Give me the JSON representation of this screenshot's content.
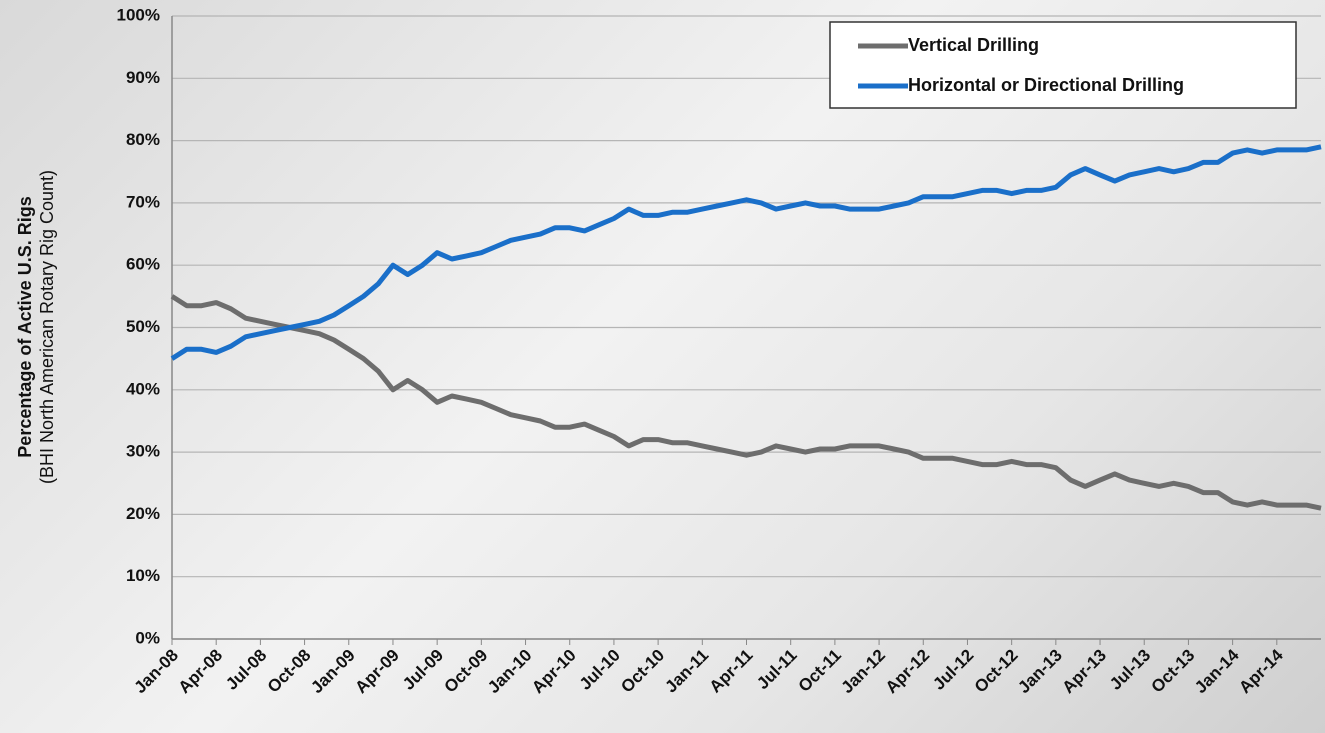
{
  "chart_data": {
    "type": "line",
    "ylabel": "Percentage of Active U.S. Rigs",
    "ylabel_sub": "(BHI North American Rotary Rig Count)",
    "categories": [
      "Jan-08",
      null,
      null,
      "Apr-08",
      null,
      null,
      "Jul-08",
      null,
      null,
      "Oct-08",
      null,
      null,
      "Jan-09",
      null,
      null,
      "Apr-09",
      null,
      null,
      "Jul-09",
      null,
      null,
      "Oct-09",
      null,
      null,
      "Jan-10",
      null,
      null,
      "Apr-10",
      null,
      null,
      "Jul-10",
      null,
      null,
      "Oct-10",
      null,
      null,
      "Jan-11",
      null,
      null,
      "Apr-11",
      null,
      null,
      "Jul-11",
      null,
      null,
      "Oct-11",
      null,
      null,
      "Jan-12",
      null,
      null,
      "Apr-12",
      null,
      null,
      "Jul-12",
      null,
      null,
      "Oct-12",
      null,
      null,
      "Jan-13",
      null,
      null,
      "Apr-13",
      null,
      null,
      "Jul-13",
      null,
      null,
      "Oct-13",
      null,
      null,
      "Jan-14",
      null,
      null,
      "Apr-14",
      null,
      null,
      null
    ],
    "series": [
      {
        "name": "Vertical Drilling",
        "color": "#6d6d6d",
        "values": [
          55,
          53.5,
          53.5,
          54,
          53,
          51.5,
          51,
          50.5,
          50,
          49.5,
          49,
          48,
          46.5,
          45,
          43,
          40,
          41.5,
          40,
          38,
          39,
          38.5,
          38,
          37,
          36,
          35.5,
          35,
          34,
          34,
          34.5,
          33.5,
          32.5,
          31,
          32,
          32,
          31.5,
          31.5,
          31,
          30.5,
          30,
          29.5,
          30,
          31,
          30.5,
          30,
          30.5,
          30.5,
          31,
          31,
          31,
          30.5,
          30,
          29,
          29,
          29,
          28.5,
          28,
          28,
          28.5,
          28,
          28,
          27.5,
          25.5,
          24.5,
          25.5,
          26.5,
          25.5,
          25,
          24.5,
          25,
          24.5,
          23.5,
          23.5,
          22,
          21.5,
          22,
          21.5,
          21.5,
          21.5,
          21
        ]
      },
      {
        "name": "Horizontal or Directional Drilling",
        "color": "#1a6fc9",
        "values": [
          45,
          46.5,
          46.5,
          46,
          47,
          48.5,
          49,
          49.5,
          50,
          50.5,
          51,
          52,
          53.5,
          55,
          57,
          60,
          58.5,
          60,
          62,
          61,
          61.5,
          62,
          63,
          64,
          64.5,
          65,
          66,
          66,
          65.5,
          66.5,
          67.5,
          69,
          68,
          68,
          68.5,
          68.5,
          69,
          69.5,
          70,
          70.5,
          70,
          69,
          69.5,
          70,
          69.5,
          69.5,
          69,
          69,
          69,
          69.5,
          70,
          71,
          71,
          71,
          71.5,
          72,
          72,
          71.5,
          72,
          72,
          72.5,
          74.5,
          75.5,
          74.5,
          73.5,
          74.5,
          75,
          75.5,
          75,
          75.5,
          76.5,
          76.5,
          78,
          78.5,
          78,
          78.5,
          78.5,
          78.5,
          79
        ]
      }
    ],
    "ylim": [
      0,
      100
    ],
    "yticks": [
      {
        "value": 0,
        "label": "0%"
      },
      {
        "value": 10,
        "label": "10%"
      },
      {
        "value": 20,
        "label": "20%"
      },
      {
        "value": 30,
        "label": "30%"
      },
      {
        "value": 40,
        "label": "40%"
      },
      {
        "value": 50,
        "label": "50%"
      },
      {
        "value": 60,
        "label": "60%"
      },
      {
        "value": 70,
        "label": "70%"
      },
      {
        "value": 80,
        "label": "80%"
      },
      {
        "value": 90,
        "label": "90%"
      },
      {
        "value": 100,
        "label": "100%"
      }
    ],
    "grid": true,
    "legend": "upper right"
  }
}
